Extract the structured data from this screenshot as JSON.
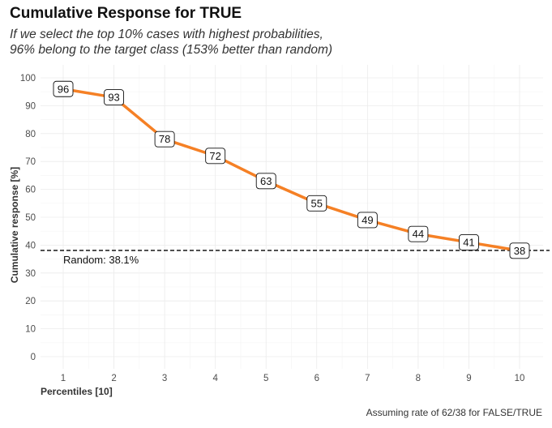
{
  "chart_data": {
    "type": "line",
    "title": "Cumulative Response for TRUE",
    "subtitle": "If we select the top 10% cases with highest probabilities,\n96% belong to the target class (153% better than random)",
    "xlabel": "Percentiles [10]",
    "ylabel": "Cumulative response [%]",
    "caption": "Assuming rate of 62/38 for FALSE/TRUE",
    "x": [
      1,
      2,
      3,
      4,
      5,
      6,
      7,
      8,
      9,
      10
    ],
    "y": [
      96,
      93,
      78,
      72,
      63,
      55,
      49,
      44,
      41,
      38
    ],
    "data_labels": [
      "96",
      "93",
      "78",
      "72",
      "63",
      "55",
      "49",
      "44",
      "41",
      "38"
    ],
    "xlim": [
      1,
      10
    ],
    "ylim": [
      0,
      100
    ],
    "yticks": [
      0,
      10,
      20,
      30,
      40,
      50,
      60,
      70,
      80,
      90,
      100
    ],
    "xticks": [
      1,
      2,
      3,
      4,
      5,
      6,
      7,
      8,
      9,
      10
    ],
    "grid": true,
    "line_color": "#f58025",
    "reference_line": {
      "value": 38.1,
      "label": "Random: 38.1%",
      "style": "dashed",
      "color": "#000000"
    }
  }
}
